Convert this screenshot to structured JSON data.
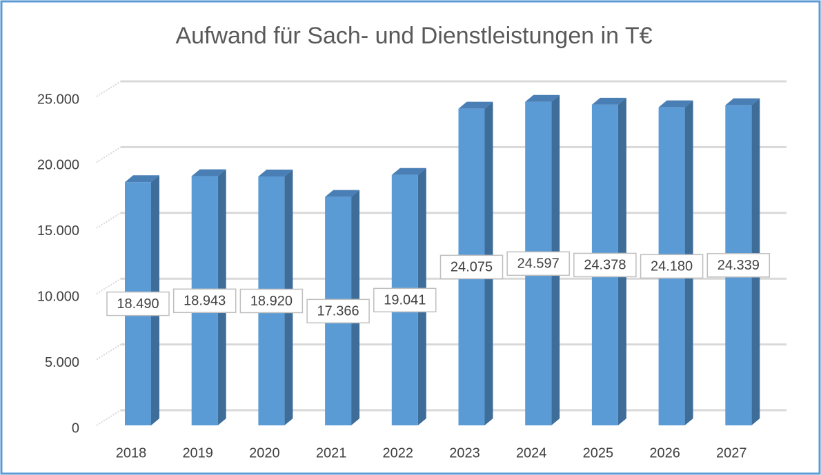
{
  "chart_data": {
    "type": "bar",
    "title": "Aufwand für Sach- und Dienstleistungen in T€",
    "categories": [
      "2018",
      "2019",
      "2020",
      "2021",
      "2022",
      "2023",
      "2024",
      "2025",
      "2026",
      "2027"
    ],
    "values": [
      18490,
      18943,
      18920,
      17366,
      19041,
      24075,
      24597,
      24378,
      24180,
      24339
    ],
    "value_labels": [
      "18.490",
      "18.943",
      "18.920",
      "17.366",
      "19.041",
      "24.075",
      "24.597",
      "24.378",
      "24.180",
      "24.339"
    ],
    "color": "#5b9bd5",
    "ylim": [
      0,
      25000
    ],
    "yticks": [
      0,
      {
        "value": 5000,
        "label": "5.000"
      },
      {
        "value": 10000,
        "label": "10.000"
      },
      {
        "value": 15000,
        "label": "15.000"
      },
      {
        "value": 20000,
        "label": "20.000"
      },
      {
        "value": 25000,
        "label": "25.000"
      }
    ],
    "grid": true
  }
}
